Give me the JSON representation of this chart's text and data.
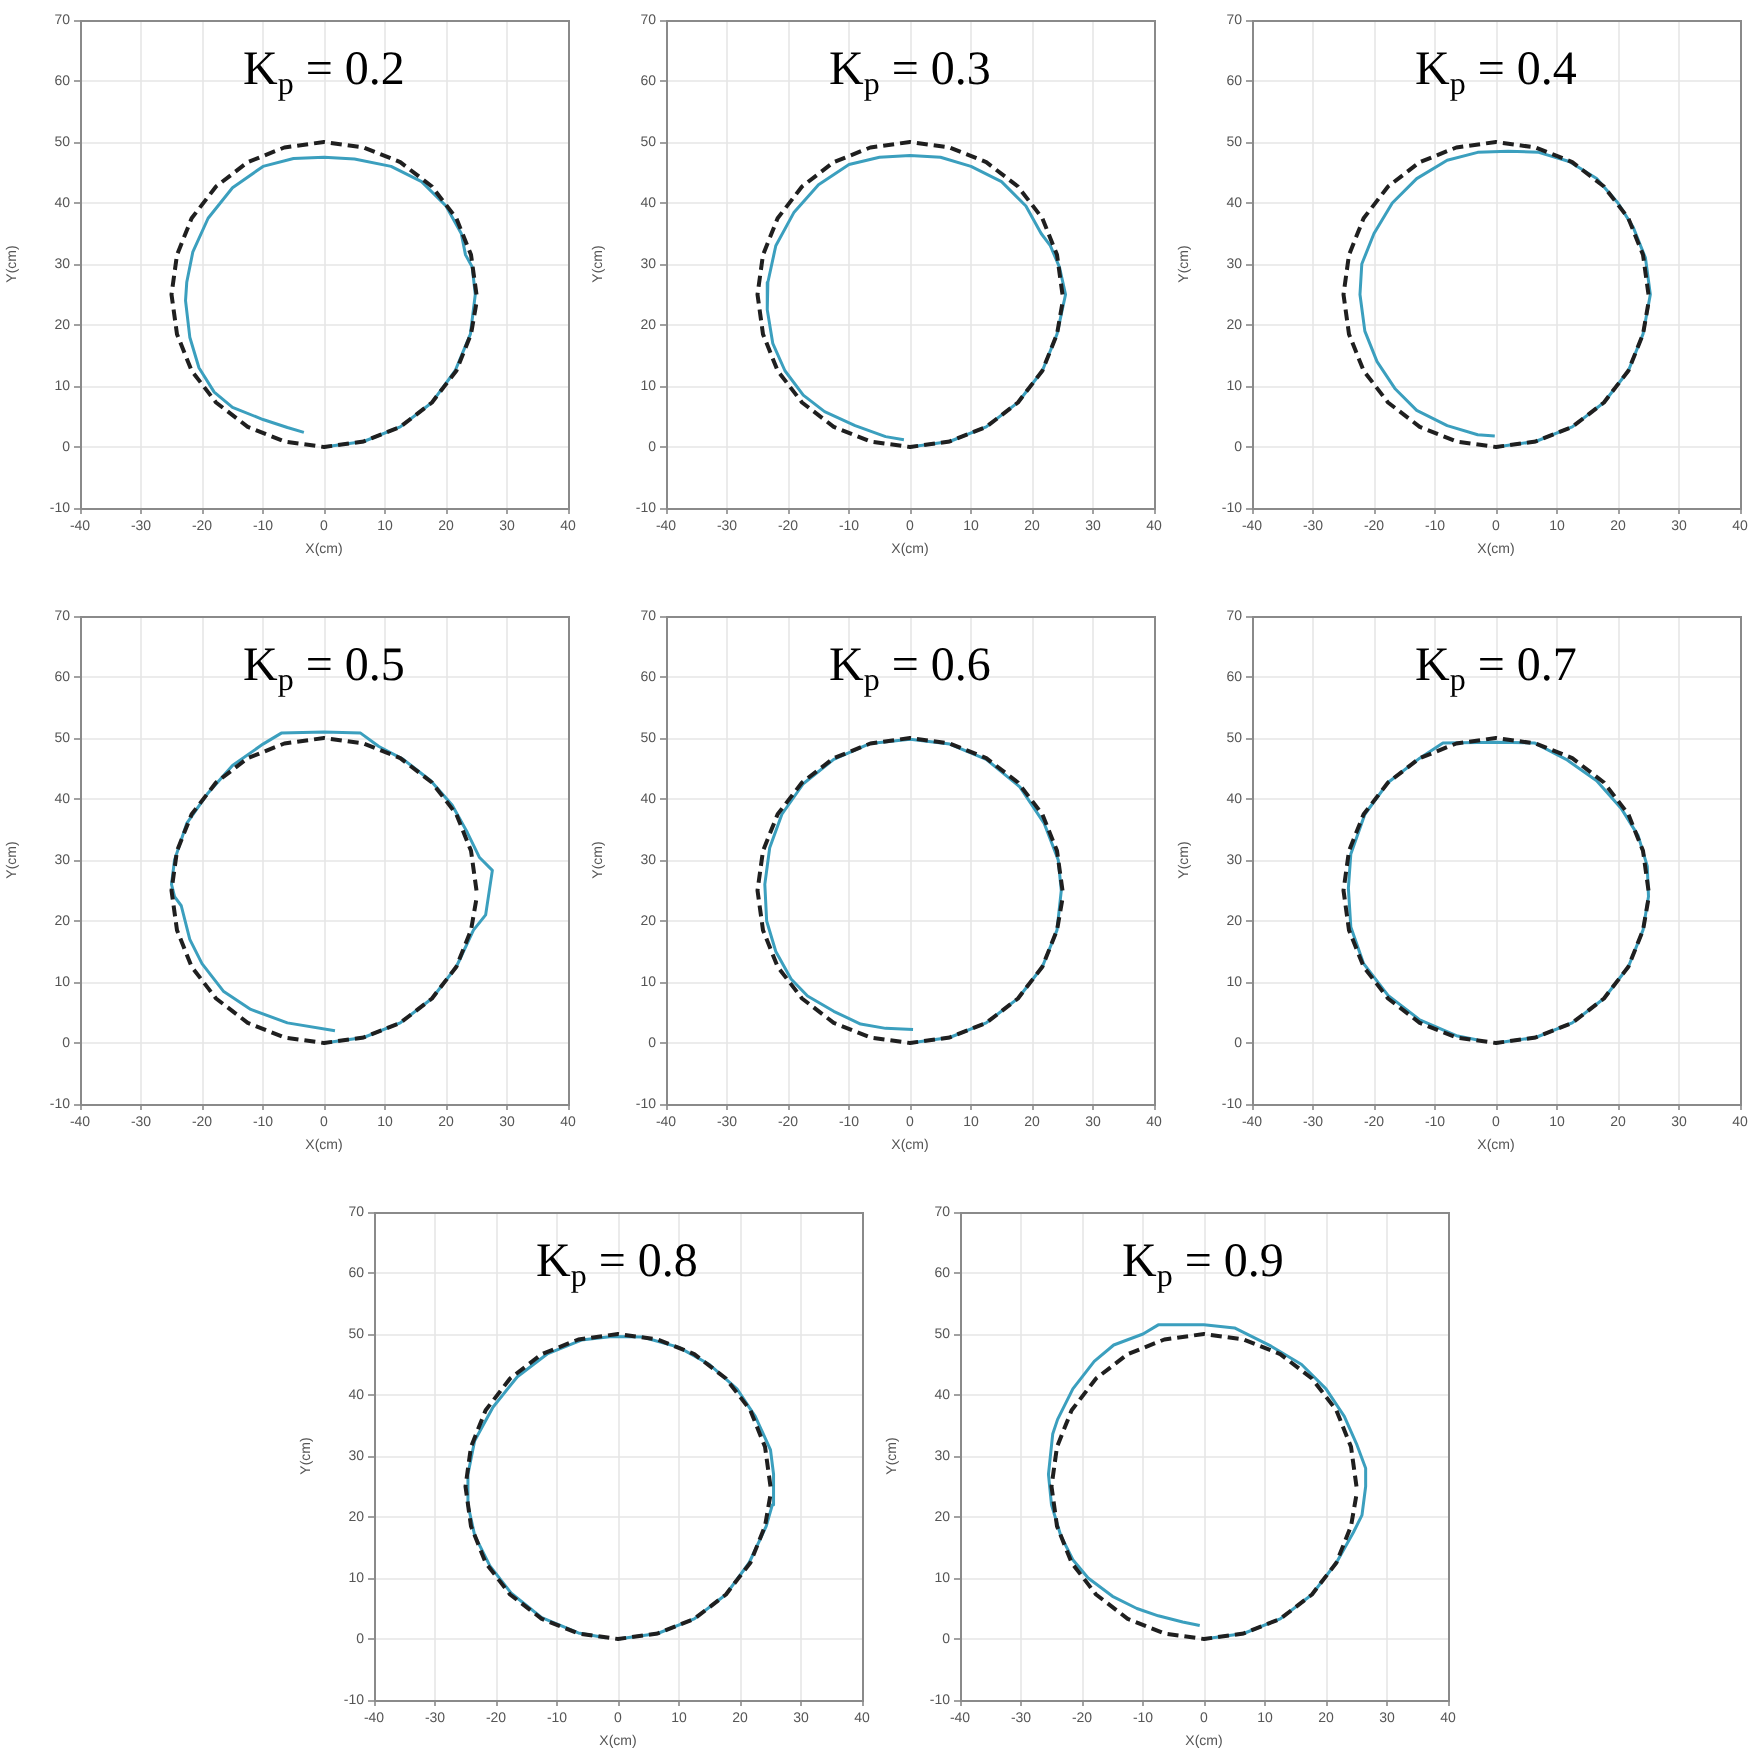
{
  "chart_data": [
    {
      "type": "line",
      "title": "K$_{p}$ = 0.2",
      "xlabel": "X(cm)",
      "ylabel": "Y(cm)",
      "xlim": [
        -40,
        40
      ],
      "ylim": [
        -10,
        70
      ],
      "xticks": [
        -40,
        -30,
        -20,
        -10,
        0,
        10,
        20,
        30,
        40
      ],
      "yticks": [
        -10,
        0,
        10,
        20,
        30,
        40,
        50,
        60,
        70
      ],
      "grid": true,
      "series": [
        {
          "color": "#1f1f1f",
          "line_style": "dashed",
          "x": [
            25,
            24.1,
            21.7,
            17.7,
            12.5,
            6.5,
            0,
            -6.5,
            -12.5,
            -17.7,
            -21.7,
            -24.1,
            -25,
            -24.1,
            -21.7,
            -17.7,
            -12.5,
            -6.5,
            0,
            6.5,
            12.5,
            17.7,
            21.7,
            24.1,
            25
          ],
          "values": [
            25,
            31.5,
            37.5,
            42.7,
            46.7,
            49.1,
            50,
            49.1,
            46.7,
            42.7,
            37.5,
            31.5,
            25,
            18.5,
            12.5,
            7.3,
            3.3,
            0.9,
            0,
            0.9,
            3.3,
            7.3,
            12.5,
            18.5,
            23.7
          ]
        },
        {
          "color": "#3b9fbe",
          "x": [
            0,
            6.5,
            12.5,
            17.7,
            21.5,
            24,
            24.8,
            24.3,
            23.2,
            22.5,
            20,
            16,
            11,
            5,
            0,
            -5,
            -10,
            -15,
            -19,
            -21.5,
            -22.5,
            -22.7,
            -22,
            -20.5,
            -18,
            -15,
            -10,
            -6,
            -3.3
          ],
          "values": [
            0,
            0.9,
            3.3,
            7.3,
            12.5,
            18.5,
            25,
            29.5,
            31.5,
            35,
            39.5,
            43.5,
            46,
            47.2,
            47.5,
            47.3,
            46,
            42.5,
            37.5,
            32,
            27,
            24,
            18,
            13,
            9,
            6.5,
            4.5,
            3.2,
            2.4
          ]
        }
      ]
    },
    {
      "type": "line",
      "title": "K$_{p}$ = 0.3",
      "xlabel": "X(cm)",
      "ylabel": "Y(cm)",
      "xlim": [
        -40,
        40
      ],
      "ylim": [
        -10,
        70
      ],
      "xticks": [
        -40,
        -30,
        -20,
        -10,
        0,
        10,
        20,
        30,
        40
      ],
      "yticks": [
        -10,
        0,
        10,
        20,
        30,
        40,
        50,
        60,
        70
      ],
      "grid": true,
      "series": [
        {
          "color": "#1f1f1f",
          "line_style": "dashed",
          "x": [
            25,
            24.1,
            21.7,
            17.7,
            12.5,
            6.5,
            0,
            -6.5,
            -12.5,
            -17.7,
            -21.7,
            -24.1,
            -25,
            -24.1,
            -21.7,
            -17.7,
            -12.5,
            -6.5,
            0,
            6.5,
            12.5,
            17.7,
            21.7,
            24.1,
            25
          ],
          "values": [
            25,
            31.5,
            37.5,
            42.7,
            46.7,
            49.1,
            50,
            49.1,
            46.7,
            42.7,
            37.5,
            31.5,
            25,
            18.5,
            12.5,
            7.3,
            3.3,
            0.9,
            0,
            0.9,
            3.3,
            7.3,
            12.5,
            18.5,
            23.7
          ]
        },
        {
          "color": "#3b9fbe",
          "x": [
            0,
            6.5,
            12.5,
            17.7,
            21.7,
            24.1,
            25.5,
            24.5,
            23,
            21.5,
            19,
            15,
            10,
            5,
            0,
            -5,
            -10,
            -15,
            -19,
            -22,
            -23.3,
            -23.4,
            -22.5,
            -20.5,
            -17.5,
            -14,
            -9,
            -4,
            -1
          ],
          "values": [
            0,
            0.9,
            3.3,
            7.3,
            12.5,
            18.5,
            25,
            29.5,
            33,
            35,
            39.5,
            43.5,
            46,
            47.5,
            47.8,
            47.5,
            46.3,
            43,
            38.5,
            33,
            27,
            22.5,
            17,
            12.5,
            8.5,
            5.8,
            3.5,
            1.7,
            1.2
          ]
        }
      ]
    },
    {
      "type": "line",
      "title": "K$_{p}$ = 0.4",
      "xlabel": "X(cm)",
      "ylabel": "Y(cm)",
      "xlim": [
        -40,
        40
      ],
      "ylim": [
        -10,
        70
      ],
      "xticks": [
        -40,
        -30,
        -20,
        -10,
        0,
        10,
        20,
        30,
        40
      ],
      "yticks": [
        -10,
        0,
        10,
        20,
        30,
        40,
        50,
        60,
        70
      ],
      "grid": true,
      "series": [
        {
          "color": "#1f1f1f",
          "line_style": "dashed",
          "x": [
            25,
            24.1,
            21.7,
            17.7,
            12.5,
            6.5,
            0,
            -6.5,
            -12.5,
            -17.7,
            -21.7,
            -24.1,
            -25,
            -24.1,
            -21.7,
            -17.7,
            -12.5,
            -6.5,
            0,
            6.5,
            12.5,
            17.7,
            21.7,
            24.1,
            25
          ],
          "values": [
            25,
            31.5,
            37.5,
            42.7,
            46.7,
            49.1,
            50,
            49.1,
            46.7,
            42.7,
            37.5,
            31.5,
            25,
            18.5,
            12.5,
            7.3,
            3.3,
            0.9,
            0,
            0.9,
            3.3,
            7.3,
            12.5,
            18.5,
            23.7
          ]
        },
        {
          "color": "#3b9fbe",
          "x": [
            0,
            6.5,
            12.5,
            17.7,
            21.7,
            24.1,
            25.3,
            24.5,
            22.5,
            20,
            16.5,
            12,
            7,
            2,
            -3,
            -8,
            -13,
            -17,
            -20,
            -22,
            -22.3,
            -21.5,
            -19.5,
            -16.5,
            -13,
            -8,
            -3,
            -0.2
          ],
          "values": [
            0,
            0.9,
            3.3,
            7.3,
            12.5,
            18.5,
            25,
            31,
            36,
            40,
            44,
            46.8,
            48.3,
            48.5,
            48.3,
            47,
            44,
            40,
            35,
            30,
            25,
            19,
            14,
            9.5,
            6,
            3.5,
            2,
            1.8
          ]
        }
      ]
    },
    {
      "type": "line",
      "title": "K$_{p}$ = 0.5",
      "xlabel": "X(cm)",
      "ylabel": "Y(cm)",
      "xlim": [
        -40,
        40
      ],
      "ylim": [
        -10,
        70
      ],
      "xticks": [
        -40,
        -30,
        -20,
        -10,
        0,
        10,
        20,
        30,
        40
      ],
      "yticks": [
        -10,
        0,
        10,
        20,
        30,
        40,
        50,
        60,
        70
      ],
      "grid": true,
      "series": [
        {
          "color": "#1f1f1f",
          "line_style": "dashed",
          "x": [
            25,
            24.1,
            21.7,
            17.7,
            12.5,
            6.5,
            0,
            -6.5,
            -12.5,
            -17.7,
            -21.7,
            -24.1,
            -25,
            -24.1,
            -21.7,
            -17.7,
            -12.5,
            -6.5,
            0,
            6.5,
            12.5,
            17.7,
            21.7,
            24.1,
            25
          ],
          "values": [
            25,
            31.5,
            37.5,
            42.7,
            46.7,
            49.1,
            50,
            49.1,
            46.7,
            42.7,
            37.5,
            31.5,
            25,
            18.5,
            12.5,
            7.3,
            3.3,
            0.9,
            0,
            0.9,
            3.3,
            7.3,
            12.5,
            18.5,
            23.7
          ]
        },
        {
          "color": "#3b9fbe",
          "x": [
            0,
            6.5,
            12.5,
            17.7,
            21.7,
            24.5,
            26.5,
            27.6,
            25.5,
            23.5,
            21,
            17.5,
            13,
            9,
            6,
            0,
            -7,
            -10,
            -15,
            -19,
            -22.5,
            -24.5,
            -25,
            -24.5,
            -23.4,
            -22,
            -20,
            -16.5,
            -12,
            -6,
            1.8
          ],
          "values": [
            0,
            0.9,
            3.3,
            7.3,
            12.5,
            18.5,
            21,
            28.3,
            30.4,
            34.5,
            39,
            43,
            46.5,
            48.6,
            50.8,
            51,
            50.8,
            49,
            45.5,
            41,
            36,
            30,
            26,
            24,
            22.5,
            17,
            13,
            8.5,
            5.5,
            3.3,
            2
          ]
        }
      ]
    },
    {
      "type": "line",
      "title": "K$_{p}$ = 0.6",
      "xlabel": "X(cm)",
      "ylabel": "Y(cm)",
      "xlim": [
        -40,
        40
      ],
      "ylim": [
        -10,
        70
      ],
      "xticks": [
        -40,
        -30,
        -20,
        -10,
        0,
        10,
        20,
        30,
        40
      ],
      "yticks": [
        -10,
        0,
        10,
        20,
        30,
        40,
        50,
        60,
        70
      ],
      "grid": true,
      "series": [
        {
          "color": "#1f1f1f",
          "line_style": "dashed",
          "x": [
            25,
            24.1,
            21.7,
            17.7,
            12.5,
            6.5,
            0,
            -6.5,
            -12.5,
            -17.7,
            -21.7,
            -24.1,
            -25,
            -24.1,
            -21.7,
            -17.7,
            -12.5,
            -6.5,
            0,
            6.5,
            12.5,
            17.7,
            21.7,
            24.1,
            25
          ],
          "values": [
            25,
            31.5,
            37.5,
            42.7,
            46.7,
            49.1,
            50,
            49.1,
            46.7,
            42.7,
            37.5,
            31.5,
            25,
            18.5,
            12.5,
            7.3,
            3.3,
            0.9,
            0,
            0.9,
            3.3,
            7.3,
            12.5,
            18.5,
            23.7
          ]
        },
        {
          "color": "#3b9fbe",
          "x": [
            0,
            6.5,
            12.5,
            17.7,
            21.7,
            24.1,
            24.8,
            24.3,
            22,
            18,
            12.5,
            6.5,
            0,
            -6.5,
            -12.5,
            -17.5,
            -21,
            -23,
            -23.8,
            -23.5,
            -22,
            -19.5,
            -16.8,
            -12.5,
            -8.1,
            -4,
            0.5
          ],
          "values": [
            0,
            0.9,
            3.3,
            7.3,
            12.5,
            18.5,
            25,
            30,
            36,
            42,
            46.5,
            49,
            49.8,
            49.1,
            46.5,
            42.5,
            37.5,
            32,
            26,
            20,
            15,
            10.5,
            7.7,
            5.2,
            3.1,
            2.4,
            2.2
          ]
        }
      ]
    },
    {
      "type": "line",
      "title": "K$_{p}$ = 0.7",
      "xlabel": "X(cm)",
      "ylabel": "Y(cm)",
      "xlim": [
        -40,
        40
      ],
      "ylim": [
        -10,
        70
      ],
      "xticks": [
        -40,
        -30,
        -20,
        -10,
        0,
        10,
        20,
        30,
        40
      ],
      "yticks": [
        -10,
        0,
        10,
        20,
        30,
        40,
        50,
        60,
        70
      ],
      "grid": true,
      "series": [
        {
          "color": "#1f1f1f",
          "line_style": "dashed",
          "x": [
            25,
            24.1,
            21.7,
            17.7,
            12.5,
            6.5,
            0,
            -6.5,
            -12.5,
            -17.7,
            -21.7,
            -24.1,
            -25,
            -24.1,
            -21.7,
            -17.7,
            -12.5,
            -6.5,
            0,
            6.5,
            12.5,
            17.7,
            21.7,
            24.1,
            25
          ],
          "values": [
            25,
            31.5,
            37.5,
            42.7,
            46.7,
            49.1,
            50,
            49.1,
            46.7,
            42.7,
            37.5,
            31.5,
            25,
            18.5,
            12.5,
            7.3,
            3.3,
            0.9,
            0,
            0.9,
            3.3,
            7.3,
            12.5,
            18.5,
            23.7
          ]
        },
        {
          "color": "#3b9fbe",
          "x": [
            0,
            6.5,
            12.5,
            17.7,
            21.7,
            24.1,
            25,
            24.8,
            23.3,
            20.5,
            16.5,
            11.5,
            6.3,
            0,
            -8.7,
            -12.5,
            -17.7,
            -21.5,
            -23.8,
            -24.2,
            -23.8,
            -21.7,
            -17.7,
            -12.5,
            -6.5,
            -3
          ],
          "values": [
            0,
            0.9,
            3.3,
            7.3,
            12.5,
            18.5,
            24,
            29,
            34,
            38.5,
            43,
            46.5,
            49.2,
            49.3,
            49.2,
            46.7,
            42.7,
            37.5,
            31,
            25.4,
            19,
            13,
            7.8,
            3.8,
            1.2,
            0.5
          ]
        }
      ]
    },
    {
      "type": "line",
      "title": "K$_{p}$ = 0.8",
      "xlabel": "X(cm)",
      "ylabel": "Y(cm)",
      "xlim": [
        -40,
        40
      ],
      "ylim": [
        -10,
        70
      ],
      "xticks": [
        -40,
        -30,
        -20,
        -10,
        0,
        10,
        20,
        30,
        40
      ],
      "yticks": [
        -10,
        0,
        10,
        20,
        30,
        40,
        50,
        60,
        70
      ],
      "grid": true,
      "series": [
        {
          "color": "#1f1f1f",
          "line_style": "dashed",
          "x": [
            25,
            24.1,
            21.7,
            17.7,
            12.5,
            6.5,
            0,
            -6.5,
            -12.5,
            -17.7,
            -21.7,
            -24.1,
            -25,
            -24.1,
            -21.7,
            -17.7,
            -12.5,
            -6.5,
            0,
            6.5,
            12.5,
            17.7,
            21.7,
            24.1,
            25
          ],
          "values": [
            25,
            31.5,
            37.5,
            42.7,
            46.7,
            49.1,
            50,
            49.1,
            46.7,
            42.7,
            37.5,
            31.5,
            25,
            18.5,
            12.5,
            7.3,
            3.3,
            0.9,
            0,
            0.9,
            3.3,
            7.3,
            12.5,
            18.5,
            23.7
          ]
        },
        {
          "color": "#3b9fbe",
          "x": [
            0,
            6.5,
            12.5,
            17.7,
            21.5,
            24.3,
            25.3,
            25.5,
            25,
            22.5,
            19.5,
            15,
            10,
            4,
            -1,
            -6,
            -11.5,
            -16.5,
            -20.5,
            -23.5,
            -24.6,
            -24.6,
            -23.5,
            -21,
            -17.5,
            -12.5,
            -6.5,
            -2
          ],
          "values": [
            0,
            0.9,
            3.3,
            7.3,
            12.5,
            18.5,
            22,
            27,
            31,
            36.5,
            41,
            45,
            47.8,
            49.5,
            49.6,
            49,
            46.8,
            43,
            38,
            32.5,
            27,
            22,
            17,
            12,
            7.5,
            3.5,
            1,
            0.2
          ]
        }
      ]
    },
    {
      "type": "line",
      "title": "K$_{p}$ = 0.9",
      "xlabel": "X(cm)",
      "ylabel": "Y(cm)",
      "xlim": [
        -40,
        40
      ],
      "ylim": [
        -10,
        70
      ],
      "xticks": [
        -40,
        -30,
        -20,
        -10,
        0,
        10,
        20,
        30,
        40
      ],
      "yticks": [
        -10,
        0,
        10,
        20,
        30,
        40,
        50,
        60,
        70
      ],
      "grid": true,
      "series": [
        {
          "color": "#1f1f1f",
          "line_style": "dashed",
          "x": [
            25,
            24.1,
            21.7,
            17.7,
            12.5,
            6.5,
            0,
            -6.5,
            -12.5,
            -17.7,
            -21.7,
            -24.1,
            -25,
            -24.1,
            -21.7,
            -17.7,
            -12.5,
            -6.5,
            0,
            6.5,
            12.5,
            17.7,
            21.7,
            24.1,
            25
          ],
          "values": [
            25,
            31.5,
            37.5,
            42.7,
            46.7,
            49.1,
            50,
            49.1,
            46.7,
            42.7,
            37.5,
            31.5,
            25,
            18.5,
            12.5,
            7.3,
            3.3,
            0.9,
            0,
            0.9,
            3.3,
            7.3,
            12.5,
            18.5,
            23.7
          ]
        },
        {
          "color": "#3b9fbe",
          "x": [
            0,
            6.5,
            12.5,
            17.7,
            21.7,
            24.5,
            25.9,
            26.5,
            26.5,
            25,
            23,
            20,
            16,
            11,
            5,
            0,
            -7.5,
            -10,
            -14.8,
            -18,
            -21.5,
            -24,
            -24.8,
            -25.5,
            -25,
            -23.5,
            -21.5,
            -19,
            -15,
            -11,
            -7.5,
            -3.5,
            -0.7
          ],
          "values": [
            0,
            0.9,
            3.3,
            7.3,
            12.5,
            17.5,
            20.3,
            25,
            28,
            32,
            36.5,
            41,
            45,
            48,
            51,
            51.5,
            51.5,
            50,
            48.2,
            45.5,
            41,
            36,
            33.6,
            27,
            22,
            17,
            13,
            10,
            7,
            5,
            3.8,
            2.8,
            2.2
          ]
        }
      ]
    }
  ]
}
